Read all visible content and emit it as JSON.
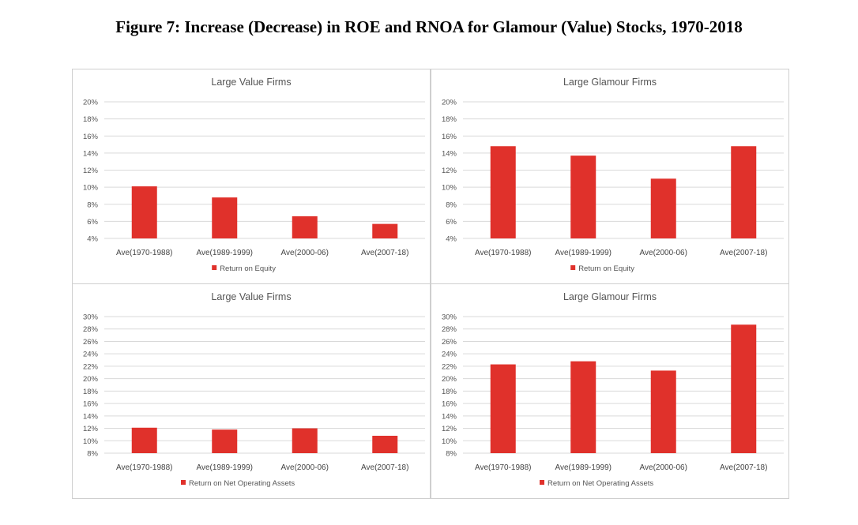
{
  "figure_title": "Figure 7: Increase (Decrease) in ROE and RNOA for Glamour (Value) Stocks, 1970-2018",
  "colors": {
    "bar": "#e0312b",
    "grid": "#d9d9d9"
  },
  "chart_data": [
    {
      "type": "bar",
      "title": "Large Value Firms",
      "categories": [
        "Ave(1970-1988)",
        "Ave(1989-1999)",
        "Ave(2000-06)",
        "Ave(2007-18)"
      ],
      "series": [
        {
          "name": "Return on Equity",
          "values": [
            10.1,
            8.8,
            6.6,
            5.7
          ]
        }
      ],
      "yticks": [
        "20%",
        "18%",
        "16%",
        "14%",
        "12%",
        "10%",
        "8%",
        "6%",
        "4%"
      ],
      "ylim": [
        4,
        20
      ],
      "ystep": 2,
      "legend_label": "Return on Equity"
    },
    {
      "type": "bar",
      "title": "Large Glamour Firms",
      "categories": [
        "Ave(1970-1988)",
        "Ave(1989-1999)",
        "Ave(2000-06)",
        "Ave(2007-18)"
      ],
      "series": [
        {
          "name": "Return on Equity",
          "values": [
            14.8,
            13.7,
            11.0,
            14.8
          ]
        }
      ],
      "yticks": [
        "20%",
        "18%",
        "16%",
        "14%",
        "12%",
        "10%",
        "8%",
        "6%",
        "4%"
      ],
      "ylim": [
        4,
        20
      ],
      "ystep": 2,
      "legend_label": "Return on Equity"
    },
    {
      "type": "bar",
      "title": "Large Value Firms",
      "categories": [
        "Ave(1970-1988)",
        "Ave(1989-1999)",
        "Ave(2000-06)",
        "Ave(2007-18)"
      ],
      "series": [
        {
          "name": "Return on Net Operating Assets",
          "values": [
            12.1,
            11.8,
            12.0,
            10.8
          ]
        }
      ],
      "yticks": [
        "30%",
        "28%",
        "26%",
        "24%",
        "22%",
        "20%",
        "18%",
        "16%",
        "14%",
        "12%",
        "10%",
        "8%"
      ],
      "ylim": [
        8,
        30
      ],
      "ystep": 2,
      "legend_label": "Return on Net Operating Assets"
    },
    {
      "type": "bar",
      "title": "Large Glamour Firms",
      "categories": [
        "Ave(1970-1988)",
        "Ave(1989-1999)",
        "Ave(2000-06)",
        "Ave(2007-18)"
      ],
      "series": [
        {
          "name": "Return on Net Operating Assets",
          "values": [
            22.3,
            22.8,
            21.3,
            28.7
          ]
        }
      ],
      "yticks": [
        "30%",
        "28%",
        "26%",
        "24%",
        "22%",
        "20%",
        "18%",
        "16%",
        "14%",
        "12%",
        "10%",
        "8%"
      ],
      "ylim": [
        8,
        30
      ],
      "ystep": 2,
      "legend_label": "Return on Net Operating Assets"
    }
  ]
}
